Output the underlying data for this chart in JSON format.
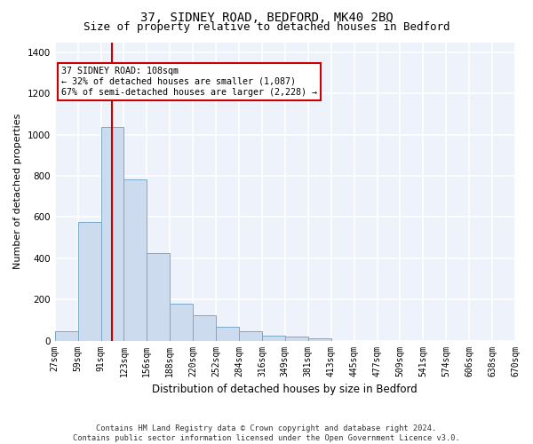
{
  "title": "37, SIDNEY ROAD, BEDFORD, MK40 2BQ",
  "subtitle": "Size of property relative to detached houses in Bedford",
  "xlabel": "Distribution of detached houses by size in Bedford",
  "ylabel": "Number of detached properties",
  "bar_labels": [
    "27sqm",
    "59sqm",
    "91sqm",
    "123sqm",
    "156sqm",
    "188sqm",
    "220sqm",
    "252sqm",
    "284sqm",
    "316sqm",
    "349sqm",
    "381sqm",
    "413sqm",
    "445sqm",
    "477sqm",
    "509sqm",
    "541sqm",
    "574sqm",
    "606sqm",
    "638sqm",
    "670sqm"
  ],
  "bar_heights": [
    47,
    578,
    1040,
    785,
    425,
    180,
    125,
    65,
    47,
    25,
    18,
    10,
    0,
    0,
    0,
    0,
    0,
    0,
    0,
    0
  ],
  "bar_color": "#ccdcee",
  "bar_edge_color": "#7aaac8",
  "background_color": "#eef2fa",
  "grid_color": "#ffffff",
  "red_line_index": 2.5,
  "annotation_text": "37 SIDNEY ROAD: 108sqm\n← 32% of detached houses are smaller (1,087)\n67% of semi-detached houses are larger (2,228) →",
  "annotation_box_color": "#ffffff",
  "annotation_box_edge": "#cc0000",
  "ylim": [
    0,
    1450
  ],
  "yticks": [
    0,
    200,
    400,
    600,
    800,
    1000,
    1200,
    1400
  ],
  "footnote": "Contains HM Land Registry data © Crown copyright and database right 2024.\nContains public sector information licensed under the Open Government Licence v3.0.",
  "title_fontsize": 10,
  "subtitle_fontsize": 9,
  "ylabel_fontsize": 8,
  "xlabel_fontsize": 8.5,
  "tick_fontsize": 7
}
